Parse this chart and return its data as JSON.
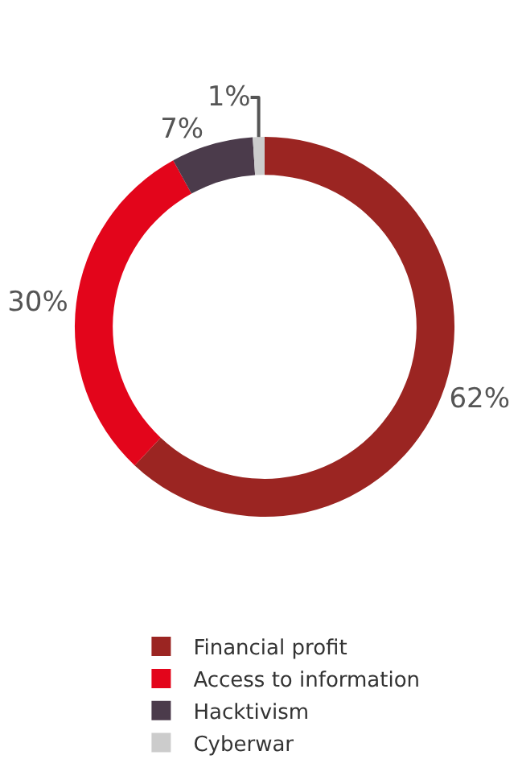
{
  "chart_data": {
    "type": "donut",
    "categories": [
      "Financial profit",
      "Access to information",
      "Hacktivism",
      "Cyberwar"
    ],
    "values": [
      62,
      30,
      7,
      1
    ],
    "colors": [
      "#9b2522",
      "#e3051b",
      "#4b3b4b",
      "#cccccc"
    ],
    "value_labels": [
      "62%",
      "30%",
      "7%",
      "1%"
    ],
    "legend": "bottom"
  }
}
